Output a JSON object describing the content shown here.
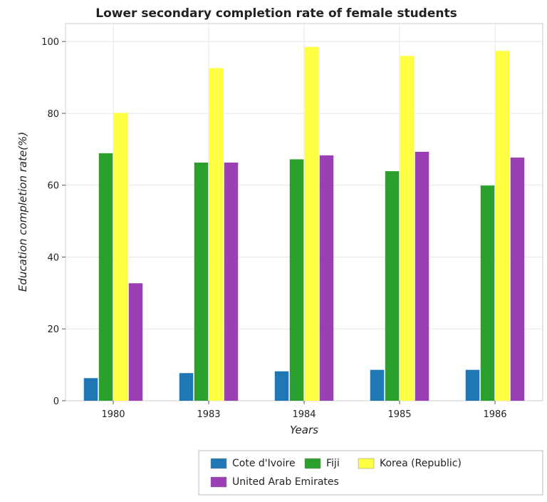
{
  "chart_data": {
    "type": "bar",
    "title": "Lower secondary completion rate of female students",
    "xlabel": "Years",
    "ylabel": "Education completion rate(%)",
    "categories": [
      "1980",
      "1983",
      "1984",
      "1985",
      "1986"
    ],
    "ylim": [
      0,
      105
    ],
    "yticks": [
      0,
      20,
      40,
      60,
      80,
      100
    ],
    "grid": true,
    "legend_position": "bottom-right",
    "series": [
      {
        "name": "Cote d'Ivoire",
        "color": "#1f77b4",
        "values": [
          6.3,
          7.7,
          8.2,
          8.6,
          8.6
        ]
      },
      {
        "name": "Fiji",
        "color": "#2ca02c",
        "values": [
          68.9,
          66.3,
          67.2,
          63.9,
          59.9
        ]
      },
      {
        "name": "Korea (Republic)",
        "color": "#ffff44",
        "values": [
          80.1,
          92.6,
          98.5,
          96.0,
          97.4
        ]
      },
      {
        "name": "United Arab Emirates",
        "color": "#9b3fb5",
        "values": [
          32.7,
          66.3,
          68.3,
          69.3,
          67.7
        ]
      }
    ]
  }
}
